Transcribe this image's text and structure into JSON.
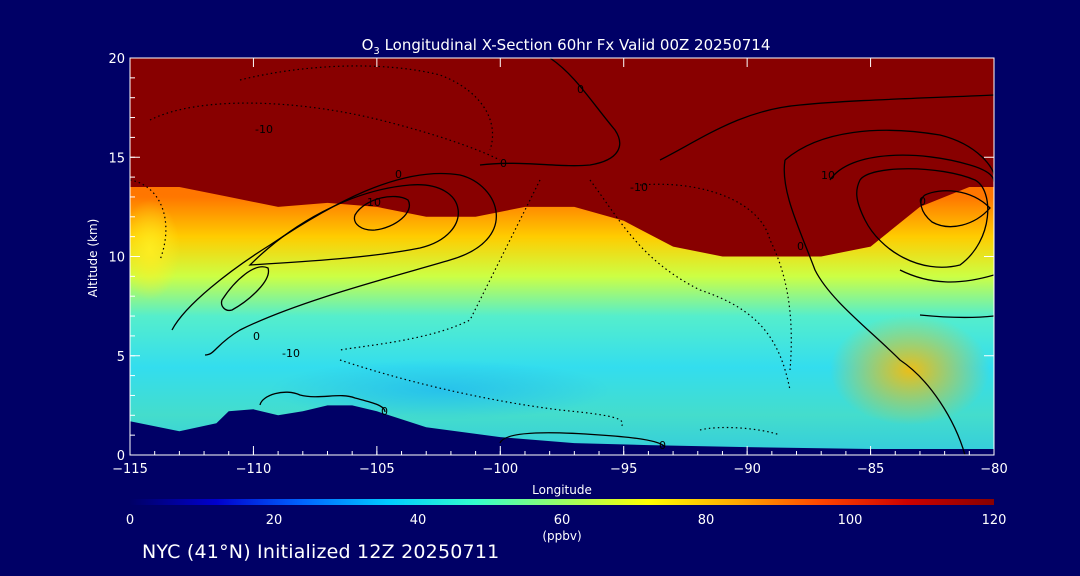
{
  "chart_data": {
    "type": "heatmap",
    "title": {
      "prefix": "O",
      "subscript": "3",
      "rest": " Longitudinal X-Section 60hr  Fx Valid 00Z 20250714"
    },
    "xlabel": "Longitude",
    "ylabel": "Altitude (km)",
    "xlim": [
      -115,
      -80
    ],
    "ylim": [
      0,
      20
    ],
    "x_ticks": [
      -115,
      -110,
      -105,
      -100,
      -95,
      -90,
      -85,
      -80
    ],
    "x_tick_labels": [
      "−115",
      "−110",
      "−105",
      "−100",
      "−95",
      "−90",
      "−85",
      "−80"
    ],
    "y_ticks": [
      0,
      5,
      10,
      15,
      20
    ],
    "y_tick_labels": [
      "0",
      "5",
      "10",
      "15",
      "20"
    ],
    "colorbar": {
      "min": 0,
      "max": 120,
      "ticks": [
        0,
        20,
        40,
        60,
        80,
        100,
        120
      ],
      "tick_labels": [
        "0",
        "20",
        "40",
        "60",
        "80",
        "100",
        "120"
      ],
      "units": "(ppbv)",
      "colors": [
        "#000066",
        "#0000cc",
        "#0066ff",
        "#00ccff",
        "#33ffcc",
        "#99ff66",
        "#ffff00",
        "#ffaa00",
        "#ff4400",
        "#cc0000",
        "#880000"
      ]
    },
    "ozone_top_height_km": [
      [
        -115,
        13.5
      ],
      [
        -113,
        13.5
      ],
      [
        -111,
        13
      ],
      [
        -109,
        12.5
      ],
      [
        -107,
        12.7
      ],
      [
        -105,
        12.5
      ],
      [
        -103,
        12
      ],
      [
        -101,
        12
      ],
      [
        -99,
        12.5
      ],
      [
        -97,
        12.5
      ],
      [
        -95,
        11.8
      ],
      [
        -93,
        10.5
      ],
      [
        -91,
        10
      ],
      [
        -89,
        10
      ],
      [
        -87,
        10
      ],
      [
        -85,
        10.5
      ],
      [
        -83,
        12.5
      ],
      [
        -81,
        13.5
      ],
      [
        -80,
        13.5
      ]
    ],
    "terrain_km": [
      [
        -115,
        1.7
      ],
      [
        -113,
        1.2
      ],
      [
        -111.5,
        1.6
      ],
      [
        -111,
        2.2
      ],
      [
        -110,
        2.3
      ],
      [
        -109,
        2.0
      ],
      [
        -108,
        2.2
      ],
      [
        -107,
        2.5
      ],
      [
        -106,
        2.5
      ],
      [
        -105,
        2.2
      ],
      [
        -104,
        1.8
      ],
      [
        -103,
        1.4
      ],
      [
        -100,
        0.9
      ],
      [
        -97,
        0.6
      ],
      [
        -94,
        0.5
      ],
      [
        -90,
        0.4
      ],
      [
        -85,
        0.3
      ],
      [
        -80,
        0.3
      ]
    ],
    "contour_labels": [
      "-10",
      "-10",
      "-10",
      "10",
      "10",
      "0",
      "0",
      "0",
      "0",
      "0",
      "0",
      "0",
      "0"
    ]
  },
  "caption": "NYC (41°N) Initialized 12Z 20250711"
}
